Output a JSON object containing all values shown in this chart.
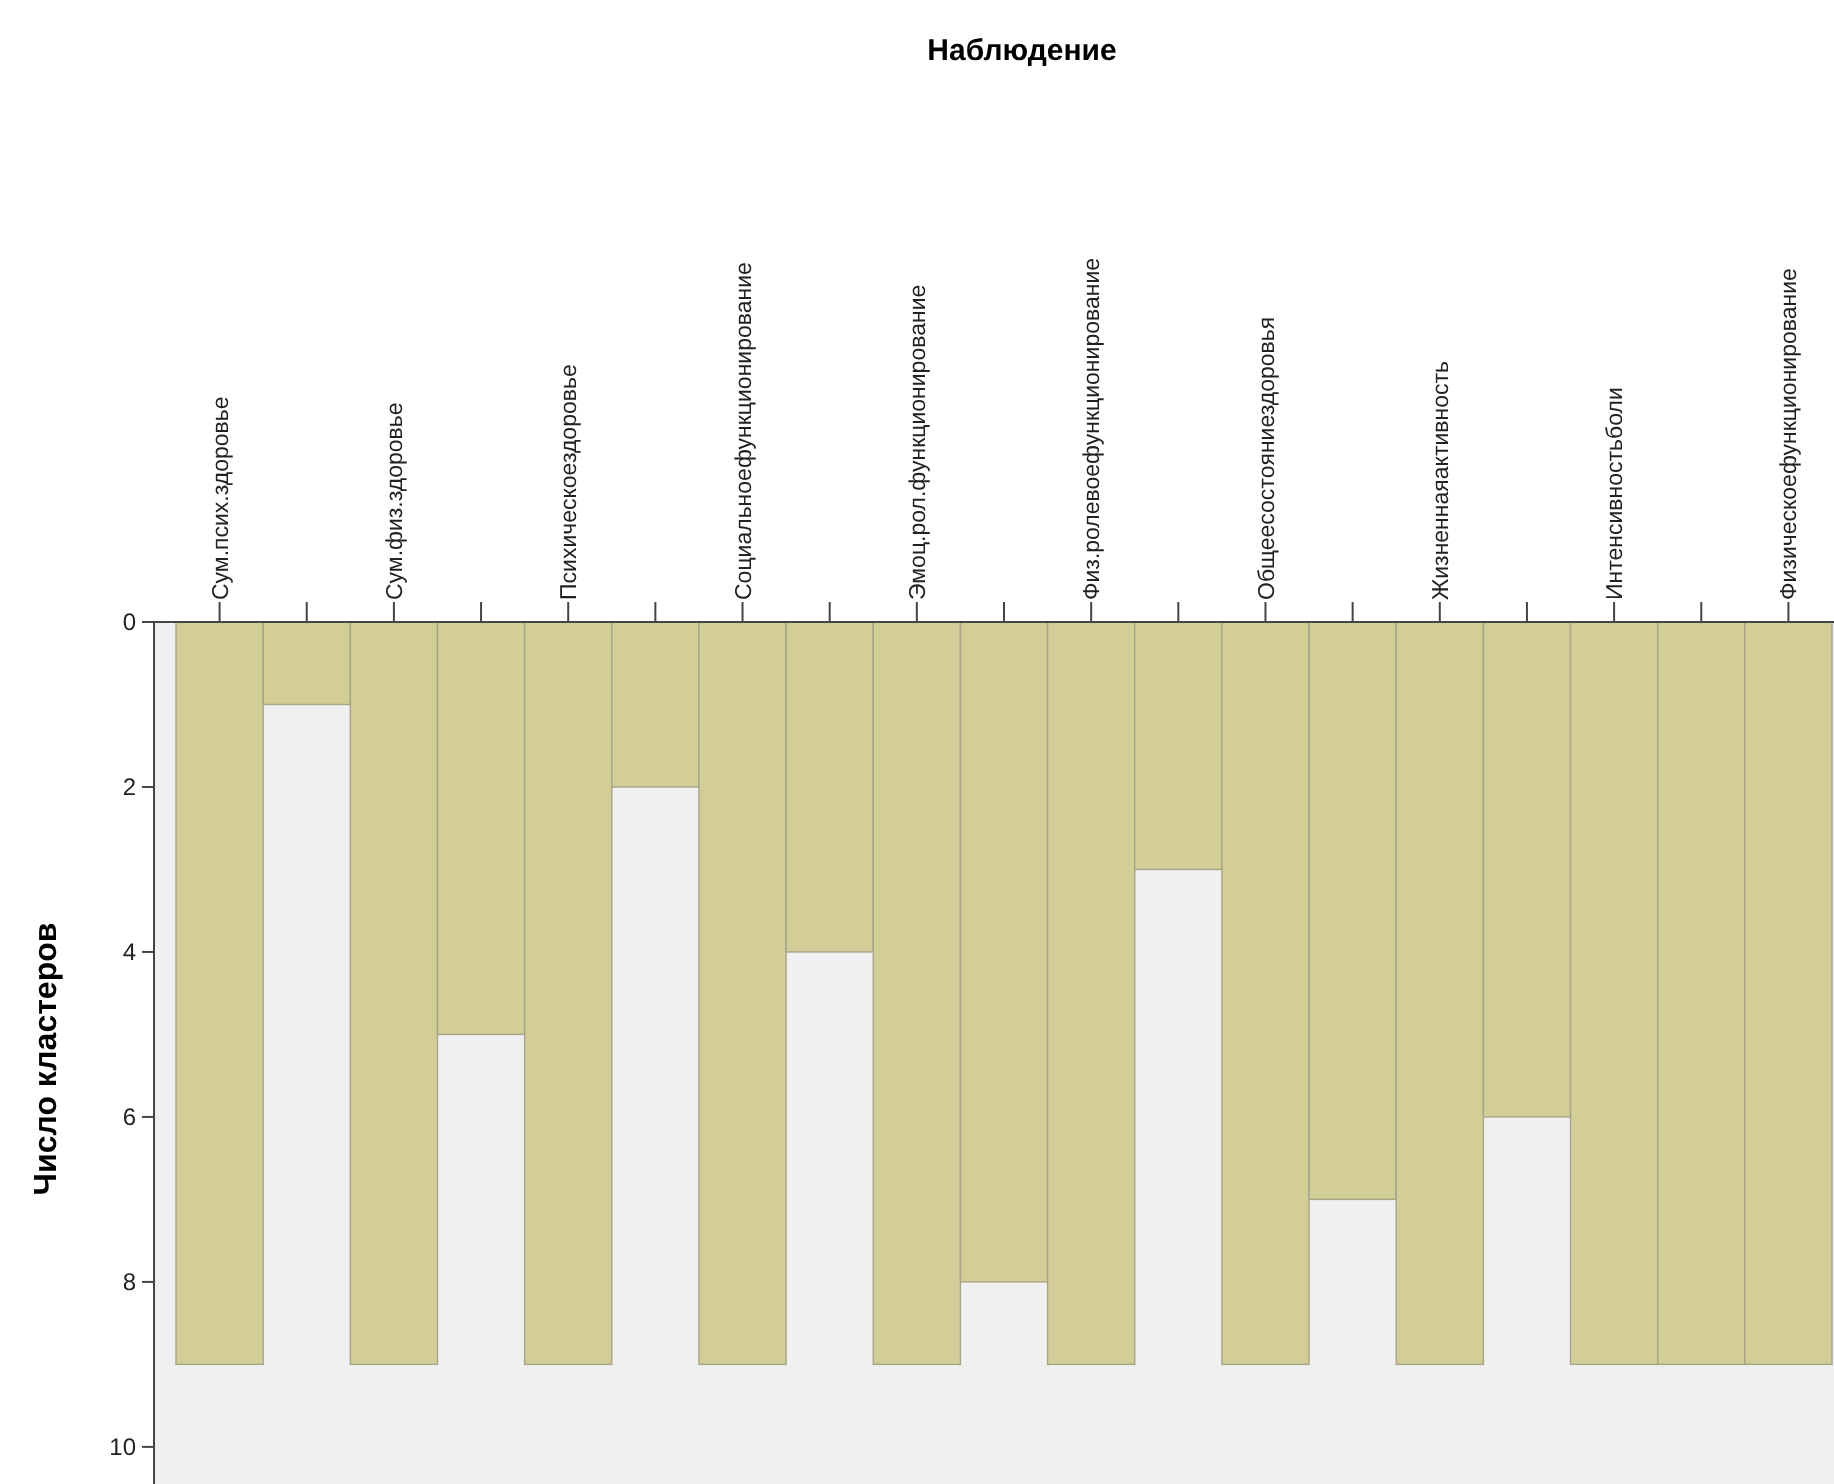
{
  "chart_data": {
    "type": "bar",
    "title": "Наблюдение",
    "ylabel": "Число кластеров",
    "categories": [
      "Сум.псих.здоровье",
      null,
      "Сум.физ.здоровье",
      null,
      "Психическоездоровье",
      null,
      "Социальноефункционирование",
      null,
      "Эмоц.рол.функционирование",
      null,
      "Физ.ролевоефункционирование",
      null,
      "Общеесостояниездоровья",
      null,
      "Жизненнаяактивность",
      null,
      "Интенсивностьболи",
      null,
      "Физическоефункционирование"
    ],
    "values": [
      9,
      1,
      9,
      5,
      9,
      2,
      9,
      4,
      9,
      8,
      9,
      3,
      9,
      7,
      9,
      6,
      9,
      9,
      9
    ],
    "color": "#d3cd98",
    "ylim": [
      10.45,
      0
    ],
    "yticks": [
      0,
      2,
      4,
      6,
      8,
      10
    ],
    "grid": false
  }
}
